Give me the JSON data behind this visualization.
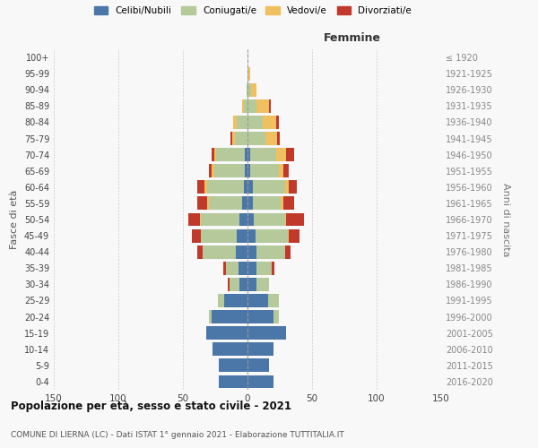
{
  "age_groups": [
    "0-4",
    "5-9",
    "10-14",
    "15-19",
    "20-24",
    "25-29",
    "30-34",
    "35-39",
    "40-44",
    "45-49",
    "50-54",
    "55-59",
    "60-64",
    "65-69",
    "70-74",
    "75-79",
    "80-84",
    "85-89",
    "90-94",
    "95-99",
    "100+"
  ],
  "birth_years": [
    "2016-2020",
    "2011-2015",
    "2006-2010",
    "2001-2005",
    "1996-2000",
    "1991-1995",
    "1986-1990",
    "1981-1985",
    "1976-1980",
    "1971-1975",
    "1966-1970",
    "1961-1965",
    "1956-1960",
    "1951-1955",
    "1946-1950",
    "1941-1945",
    "1936-1940",
    "1931-1935",
    "1926-1930",
    "1921-1925",
    "≤ 1920"
  ],
  "males": {
    "celibi": [
      22,
      22,
      27,
      32,
      28,
      18,
      6,
      7,
      9,
      8,
      6,
      4,
      3,
      2,
      2,
      0,
      0,
      0,
      0,
      0,
      0
    ],
    "coniugati": [
      0,
      0,
      0,
      0,
      2,
      5,
      8,
      10,
      26,
      28,
      30,
      26,
      28,
      24,
      22,
      10,
      8,
      3,
      1,
      0,
      0
    ],
    "vedovi": [
      0,
      0,
      0,
      0,
      0,
      0,
      0,
      0,
      0,
      0,
      1,
      1,
      2,
      2,
      2,
      2,
      3,
      1,
      0,
      0,
      0
    ],
    "divorziati": [
      0,
      0,
      0,
      0,
      0,
      0,
      1,
      2,
      4,
      7,
      9,
      8,
      6,
      2,
      2,
      1,
      0,
      0,
      0,
      0,
      0
    ]
  },
  "females": {
    "nubili": [
      20,
      17,
      20,
      30,
      20,
      16,
      7,
      7,
      7,
      6,
      5,
      4,
      4,
      2,
      2,
      0,
      0,
      0,
      0,
      0,
      0
    ],
    "coniugate": [
      0,
      0,
      0,
      0,
      4,
      8,
      10,
      12,
      22,
      25,
      24,
      22,
      25,
      22,
      20,
      14,
      12,
      7,
      3,
      1,
      0
    ],
    "vedove": [
      0,
      0,
      0,
      0,
      0,
      0,
      0,
      0,
      0,
      1,
      1,
      2,
      3,
      4,
      8,
      9,
      10,
      10,
      4,
      1,
      0
    ],
    "divorziate": [
      0,
      0,
      0,
      0,
      0,
      0,
      0,
      2,
      4,
      8,
      14,
      8,
      6,
      4,
      6,
      2,
      2,
      1,
      0,
      0,
      0
    ]
  },
  "colors": {
    "celibi": "#4b77a8",
    "coniugati": "#b5c99a",
    "vedovi": "#f0c060",
    "divorziati": "#c0392b"
  },
  "xlim": 150,
  "title": "Popolazione per età, sesso e stato civile - 2021",
  "subtitle": "COMUNE DI LIERNA (LC) - Dati ISTAT 1° gennaio 2021 - Elaborazione TUTTITALIA.IT",
  "ylabel_left": "Fasce di età",
  "ylabel_right": "Anni di nascita",
  "xlabel_right": "Femmine",
  "legend_labels": [
    "Celibi/Nubili",
    "Coniugati/e",
    "Vedovi/e",
    "Divorziati/e"
  ],
  "background_color": "#f8f8f8",
  "grid_color": "#cccccc"
}
